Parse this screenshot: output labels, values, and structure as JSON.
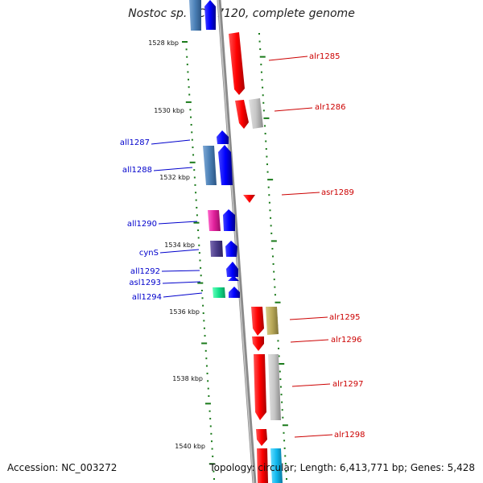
{
  "title": "Nostoc sp. PCC 7120, complete genome",
  "footer": {
    "accession": "Accession: NC_003272",
    "topology": "Topology: circular; Length: 6,413,771 bp; Genes: 5,428"
  },
  "colors": {
    "forward_strand": "#ff0000",
    "reverse_strand": "#0000ff",
    "backbone": "#888888",
    "tick": "#1a7a1a",
    "forward_label": "#cc0000",
    "reverse_label": "#0000cc"
  },
  "scale": {
    "labels": [
      "1528 kbp",
      "1530 kbp",
      "1532 kbp",
      "1534 kbp",
      "1536 kbp",
      "1538 kbp",
      "1540 kbp"
    ]
  },
  "genes": {
    "forward": [
      "alr1285",
      "alr1286",
      "asr1289",
      "alr1295",
      "alr1296",
      "alr1297",
      "alr1298"
    ],
    "reverse": [
      "all1287",
      "all1288",
      "all1290",
      "cynS",
      "all1292",
      "asl1293",
      "all1294"
    ]
  }
}
